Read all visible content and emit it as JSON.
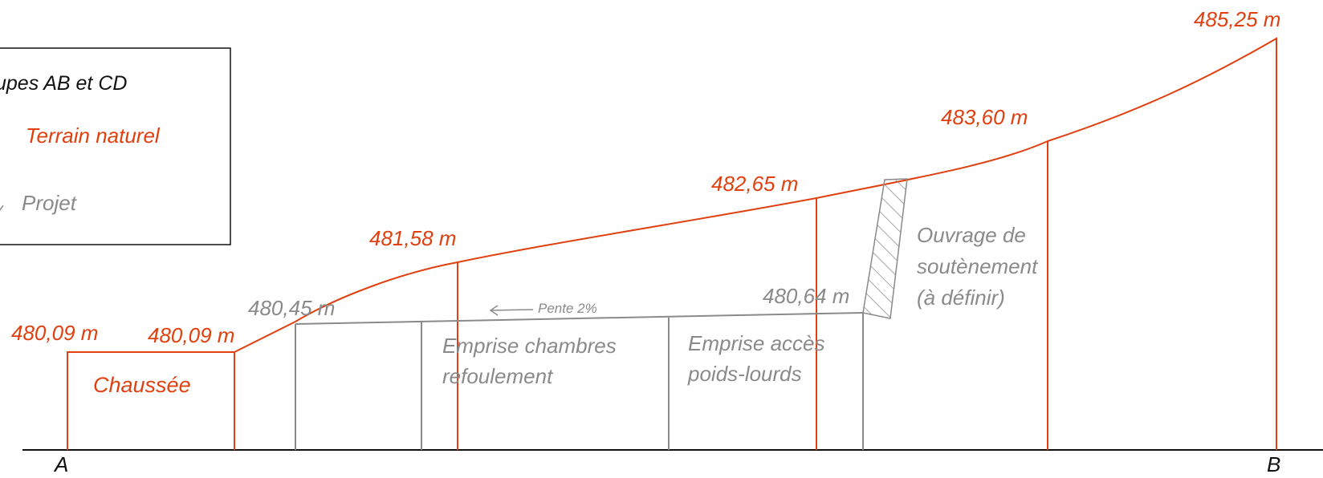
{
  "legend": {
    "title": "upes AB et CD",
    "terrain": "Terrain naturel",
    "projet": "Projet"
  },
  "points": {
    "a": "A",
    "b": "B"
  },
  "terrain_levels": {
    "l1": "480,09 m",
    "l2": "480,09 m",
    "l3": "481,58 m",
    "l4": "482,65 m",
    "l5": "483,60 m",
    "l6": "485,25 m"
  },
  "projet_levels": {
    "p1": "480,45 m",
    "p2": "480,64 m"
  },
  "slope": {
    "label": "Pente 2%"
  },
  "zones": {
    "chaussee": "Chaussée",
    "chambres_line1": "Emprise chambres",
    "chambres_line2": "refoulement",
    "acces_line1": "Emprise accès",
    "acces_line2": "poids-lourds",
    "ouvrage_line1": "Ouvrage de",
    "ouvrage_line2": "soutènement",
    "ouvrage_line3": "(à définir)"
  },
  "colors": {
    "terrain": "#e0400f",
    "projet": "#8a8a8a",
    "ground": "#111111"
  }
}
